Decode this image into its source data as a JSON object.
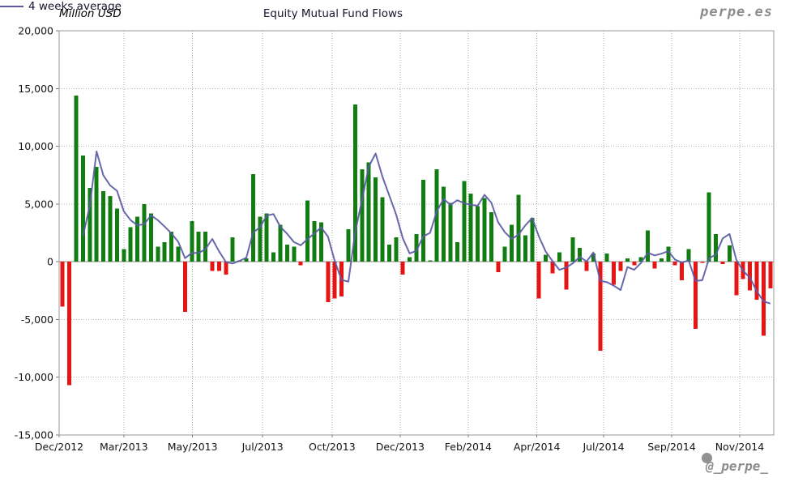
{
  "header": {
    "units_label": "Million USD",
    "title": "Equity Mutual Fund Flows",
    "legend": {
      "label": "4 weeks average",
      "line_color": "#5a5aa5"
    },
    "watermark": "perpe.es"
  },
  "footer": {
    "handle": "@_perpe_"
  },
  "chart_data": {
    "type": "bar",
    "title": "Equity Mutual Fund Flows",
    "ylabel": "Million USD",
    "frequency": "weekly",
    "period": "Dec/2012 - Nov/2014",
    "ylim": [
      -15000,
      20000
    ],
    "y_ticks": [
      20000,
      15000,
      10000,
      5000,
      0,
      -5000,
      -10000,
      -15000
    ],
    "grid": true,
    "legend_position": "top",
    "x_tick_labels": [
      "Dec/2012",
      "Mar/2013",
      "May/2013",
      "Jul/2013",
      "Oct/2013",
      "Dec/2013",
      "Feb/2014",
      "Apr/2014",
      "Jul/2014",
      "Sep/2014",
      "Nov/2014"
    ],
    "x_tick_week_positions": [
      0,
      9.5,
      19.6,
      29.9,
      40.1,
      50.1,
      60.1,
      70.2,
      80,
      90,
      100
    ],
    "colors": {
      "positive_bar": "#117d11",
      "negative_bar": "#e71414",
      "average_line": "#5a5aa5"
    },
    "series": [
      {
        "name": "Equity Mutual Fund Flows",
        "type": "bar",
        "values": [
          -3900,
          -10700,
          14400,
          9200,
          6400,
          8200,
          6100,
          5700,
          4600,
          1100,
          3000,
          3900,
          5000,
          4200,
          1300,
          1700,
          2600,
          1300,
          -4350,
          3500,
          2600,
          2600,
          -800,
          -800,
          -1100,
          2100,
          100,
          300,
          7600,
          3900,
          4200,
          800,
          3200,
          1500,
          1300,
          -300,
          5300,
          3500,
          3400,
          -3500,
          -3200,
          -3000,
          2800,
          13600,
          8000,
          8600,
          7300,
          5600,
          1500,
          2100,
          -1100,
          400,
          2400,
          7100,
          100,
          8000,
          6500,
          5100,
          1700,
          7000,
          5900,
          4800,
          5500,
          4300,
          -900,
          1300,
          3200,
          5800,
          2300,
          3800,
          -3200,
          600,
          -1000,
          800,
          -2400,
          2100,
          1200,
          -800,
          700,
          -7700,
          700,
          -2000,
          -800,
          300,
          -300,
          400,
          2700,
          -600,
          300,
          1300,
          -300,
          -1600,
          1100,
          -5800,
          -100,
          6000,
          2400,
          -200,
          1400,
          -2900,
          -1500,
          -2500,
          -3300,
          -6400,
          -2300
        ]
      },
      {
        "name": "4 weeks average",
        "type": "line",
        "derivation": "trailing 4-week mean of weekly bar values"
      }
    ]
  }
}
